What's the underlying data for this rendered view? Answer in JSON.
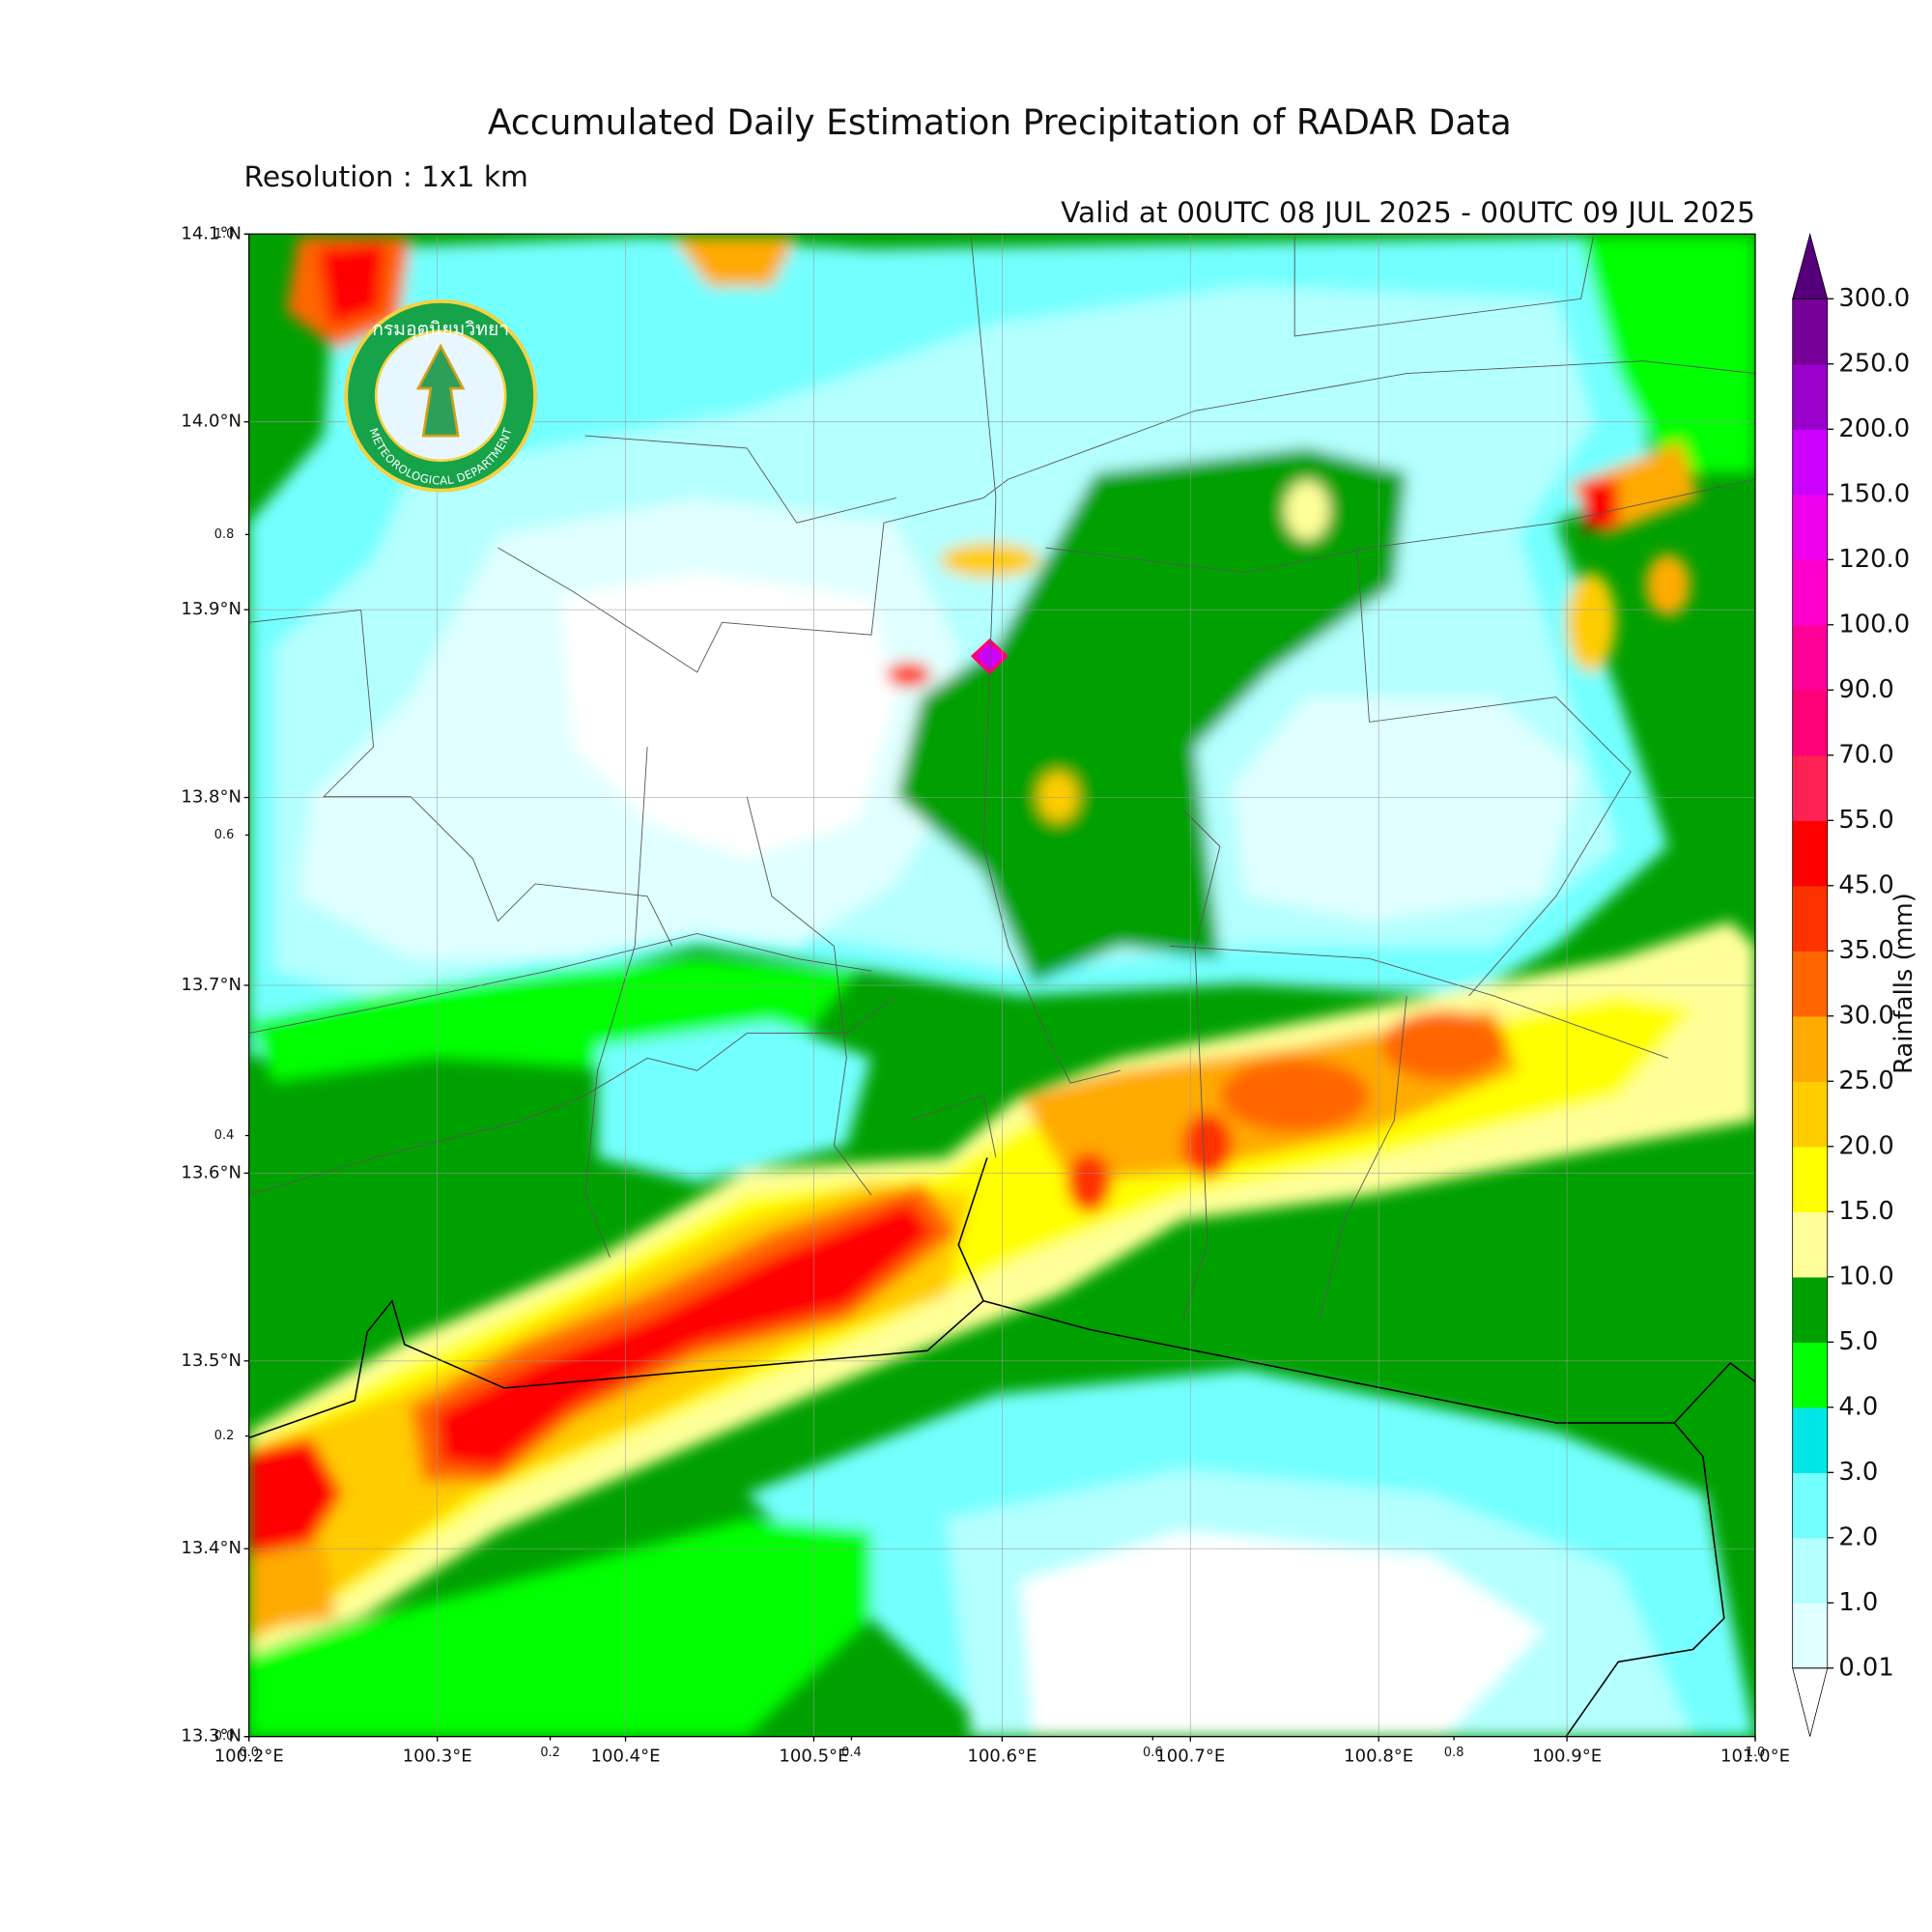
{
  "header": {
    "title": "Accumulated Daily Estimation Precipitation of RADAR Data",
    "resolution": "Resolution : 1x1 km",
    "valid": "Valid at 00UTC 08 JUL 2025 - 00UTC 09 JUL 2025"
  },
  "map": {
    "type": "contour-map",
    "xlim": [
      100.2,
      101.0
    ],
    "ylim": [
      13.3,
      14.1
    ],
    "grid": true,
    "xticks": [
      {
        "value": 100.2,
        "label": "100.2°E"
      },
      {
        "value": 100.3,
        "label": "100.3°E"
      },
      {
        "value": 100.4,
        "label": "100.4°E"
      },
      {
        "value": 100.5,
        "label": "100.5°E"
      },
      {
        "value": 100.6,
        "label": "100.6°E"
      },
      {
        "value": 100.7,
        "label": "100.7°E"
      },
      {
        "value": 100.8,
        "label": "100.8°E"
      },
      {
        "value": 100.9,
        "label": "100.9°E"
      },
      {
        "value": 101.0,
        "label": "101.0°E"
      }
    ],
    "yticks": [
      {
        "value": 13.3,
        "label": "13.3°N"
      },
      {
        "value": 13.4,
        "label": "13.4°N"
      },
      {
        "value": 13.5,
        "label": "13.5°N"
      },
      {
        "value": 13.6,
        "label": "13.6°N"
      },
      {
        "value": 13.7,
        "label": "13.7°N"
      },
      {
        "value": 13.8,
        "label": "13.8°N"
      },
      {
        "value": 13.9,
        "label": "13.9°N"
      },
      {
        "value": 14.0,
        "label": "14.0°N"
      },
      {
        "value": 14.1,
        "label": "14.1°N"
      }
    ],
    "frame_xticks": [
      {
        "value": 0,
        "label": "0.0"
      },
      0.2,
      0.4,
      0.6,
      0.8,
      {
        "value": 1,
        "label": "1.0"
      }
    ],
    "frame_yticks": [
      {
        "value": 0,
        "label": "0.0"
      },
      0.2,
      0.4,
      0.6,
      0.8,
      {
        "value": 1,
        "label": "1.0"
      }
    ]
  },
  "colorbar": {
    "label": "Rainfalls (mm)",
    "levels": [
      0.01,
      {
        "value": 1,
        "label": "1.0"
      },
      {
        "value": 2,
        "label": "2.0"
      },
      {
        "value": 3,
        "label": "3.0"
      },
      {
        "value": 4,
        "label": "4.0"
      },
      {
        "value": 5,
        "label": "5.0"
      },
      {
        "value": 10,
        "label": "10.0"
      },
      {
        "value": 15,
        "label": "15.0"
      },
      {
        "value": 20,
        "label": "20.0"
      },
      {
        "value": 25,
        "label": "25.0"
      },
      {
        "value": 30,
        "label": "30.0"
      },
      {
        "value": 35,
        "label": "35.0"
      },
      {
        "value": 45,
        "label": "45.0"
      },
      {
        "value": 55,
        "label": "55.0"
      },
      {
        "value": 70,
        "label": "70.0"
      },
      {
        "value": 90,
        "label": "90.0"
      },
      {
        "value": 100,
        "label": "100.0"
      },
      {
        "value": 120,
        "label": "120.0"
      },
      {
        "value": 150,
        "label": "150.0"
      },
      {
        "value": 200,
        "label": "200.0"
      },
      {
        "value": 250,
        "label": "250.0"
      },
      {
        "value": 300,
        "label": "300.0"
      }
    ],
    "colors": [
      "#e0ffff",
      "#b4ffff",
      "#73ffff",
      "#00e6e6",
      "#00ff00",
      "#00a000",
      "#ffff99",
      "#ffff00",
      "#ffcc00",
      "#ffaa00",
      "#ff6600",
      "#ff3300",
      "#ff0000",
      "#ff2255",
      "#ff0077",
      "#ff0099",
      "#ff00cc",
      "#ee00ee",
      "#cc00ff",
      "#9900cc",
      "#770099"
    ],
    "over_color": "#55007a",
    "under_color": "#ffffff"
  },
  "logo": {
    "thai": "กรมอุตุนิยมวิทยา",
    "english": "METEOROLOGICAL DEPARTMENT"
  }
}
